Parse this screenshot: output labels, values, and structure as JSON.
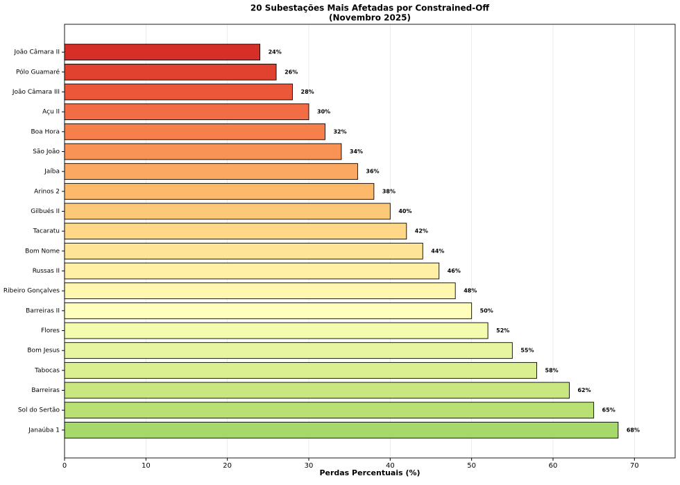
{
  "chart_data": {
    "type": "barh",
    "title": [
      "20 Subestações Mais Afetadas por Constrained-Off",
      "(Novembro 2025)"
    ],
    "xlabel": "Perdas Percentuais (%)",
    "categories": [
      "João Câmara II",
      "Pólo Guamaré",
      "João Câmara III",
      "Açu II",
      "Boa Hora",
      "São João",
      "Jaíba",
      "Arinos 2",
      "Gilbués II",
      "Tacaratu",
      "Bom Nome",
      "Russas II",
      "Ribeiro Gonçalves",
      "Barreiras II",
      "Flores",
      "Bom Jesus",
      "Tabocas",
      "Barreiras",
      "Sol do Sertão",
      "Janaúba 1"
    ],
    "values": [
      24,
      26,
      28,
      30,
      32,
      34,
      36,
      38,
      40,
      42,
      44,
      46,
      48,
      50,
      52,
      55,
      58,
      62,
      65,
      68
    ],
    "value_labels": [
      "24%",
      "26%",
      "28%",
      "30%",
      "32%",
      "34%",
      "36%",
      "38%",
      "40%",
      "42%",
      "44%",
      "46%",
      "48%",
      "50%",
      "52%",
      "55%",
      "58%",
      "62%",
      "65%",
      "68%"
    ],
    "colors": [
      "#d62f27",
      "#e0422f",
      "#ea5739",
      "#f26d43",
      "#f6804c",
      "#f99355",
      "#fba862",
      "#fdb96a",
      "#fdc877",
      "#fed887",
      "#fee496",
      "#fff0a6",
      "#fff6b0",
      "#fefebd",
      "#f4faae",
      "#e8f59f",
      "#daef90",
      "#c9e781",
      "#b8e073",
      "#a6d96a"
    ],
    "xlim": [
      0,
      75
    ],
    "xticks": [
      0,
      10,
      20,
      30,
      40,
      50,
      60,
      70
    ],
    "grid": true
  }
}
